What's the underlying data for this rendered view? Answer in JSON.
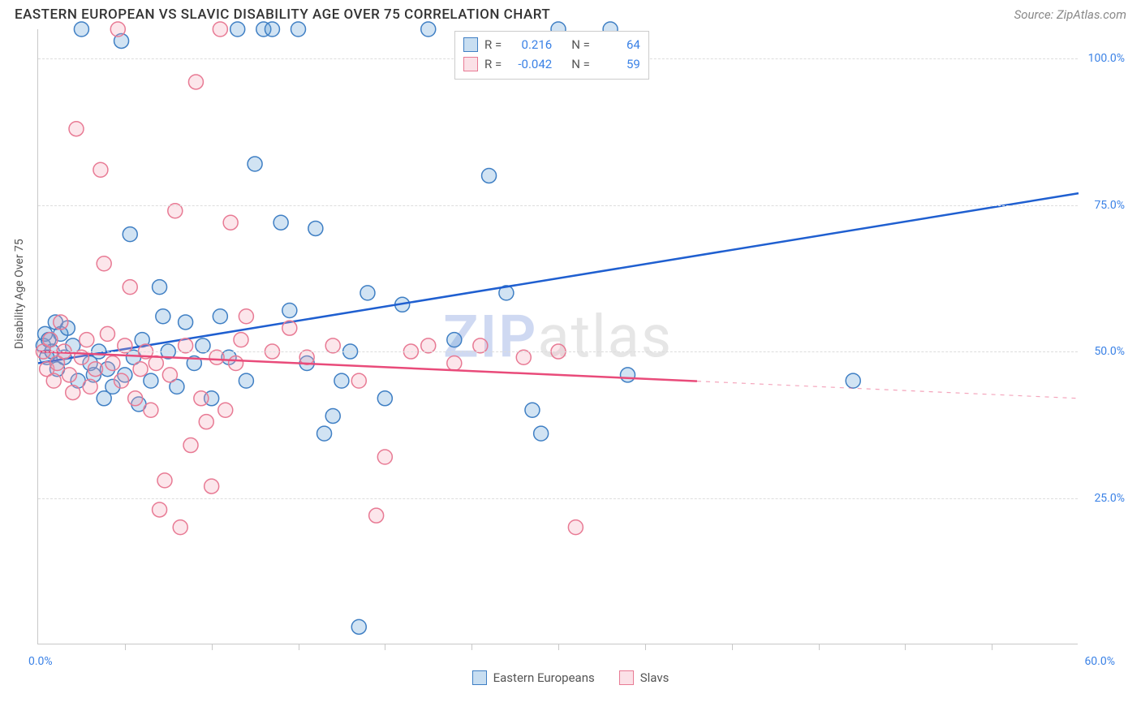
{
  "header": {
    "title": "EASTERN EUROPEAN VS SLAVIC DISABILITY AGE OVER 75 CORRELATION CHART",
    "source": "Source: ZipAtlas.com"
  },
  "watermark": {
    "prefix": "ZIP",
    "suffix": "atlas"
  },
  "chart": {
    "type": "scatter",
    "background_color": "#ffffff",
    "grid_color": "#dddddd",
    "axis_color": "#c8c8c8",
    "tick_label_color": "#3b82e6",
    "xlim": [
      0,
      60
    ],
    "ylim": [
      0,
      105
    ],
    "y_ticks": [
      25,
      50,
      75,
      100
    ],
    "y_tick_labels": [
      "25.0%",
      "50.0%",
      "75.0%",
      "100.0%"
    ],
    "x_ticks_major": [
      0,
      60
    ],
    "x_tick_labels": [
      "0.0%",
      "60.0%"
    ],
    "x_minor_tick_step": 5,
    "y_axis_title": "Disability Age Over 75",
    "marker_radius": 9,
    "marker_stroke_width": 1.5,
    "marker_fill_opacity": 0.28,
    "line_width": 2.5,
    "series": [
      {
        "key": "eastern",
        "label": "Eastern Europeans",
        "color": "#5b9bd5",
        "stroke": "#3f7fc4",
        "line_color": "#1f5fd0",
        "R": "0.216",
        "N": "64",
        "trend": {
          "x1": 0,
          "y1": 48,
          "x2": 60,
          "y2": 77,
          "solid_until": 60
        },
        "points": [
          [
            0.3,
            51
          ],
          [
            0.4,
            53
          ],
          [
            0.5,
            49
          ],
          [
            0.6,
            52
          ],
          [
            0.8,
            50
          ],
          [
            1.0,
            55
          ],
          [
            1.1,
            47
          ],
          [
            1.3,
            53
          ],
          [
            1.5,
            49
          ],
          [
            1.7,
            54
          ],
          [
            2.0,
            51
          ],
          [
            2.3,
            45
          ],
          [
            2.5,
            105
          ],
          [
            3.0,
            48
          ],
          [
            3.2,
            46
          ],
          [
            3.5,
            50
          ],
          [
            3.8,
            42
          ],
          [
            4.0,
            47
          ],
          [
            4.3,
            44
          ],
          [
            4.8,
            103
          ],
          [
            5.0,
            46
          ],
          [
            5.3,
            70
          ],
          [
            5.5,
            49
          ],
          [
            5.8,
            41
          ],
          [
            6.0,
            52
          ],
          [
            6.5,
            45
          ],
          [
            7.0,
            61
          ],
          [
            7.2,
            56
          ],
          [
            7.5,
            50
          ],
          [
            8.0,
            44
          ],
          [
            8.5,
            55
          ],
          [
            9.0,
            48
          ],
          [
            9.5,
            51
          ],
          [
            10.0,
            42
          ],
          [
            10.5,
            56
          ],
          [
            11.0,
            49
          ],
          [
            11.5,
            105
          ],
          [
            12.0,
            45
          ],
          [
            12.5,
            82
          ],
          [
            13.0,
            105
          ],
          [
            13.5,
            105
          ],
          [
            14.0,
            72
          ],
          [
            14.5,
            57
          ],
          [
            15.0,
            105
          ],
          [
            15.5,
            48
          ],
          [
            16.0,
            71
          ],
          [
            16.5,
            36
          ],
          [
            17.0,
            39
          ],
          [
            17.5,
            45
          ],
          [
            18.0,
            50
          ],
          [
            18.5,
            3
          ],
          [
            19.0,
            60
          ],
          [
            20.0,
            42
          ],
          [
            21.0,
            58
          ],
          [
            22.5,
            105
          ],
          [
            24.0,
            52
          ],
          [
            26.0,
            80
          ],
          [
            27.0,
            60
          ],
          [
            28.5,
            40
          ],
          [
            29.0,
            36
          ],
          [
            30.0,
            105
          ],
          [
            34.0,
            46
          ],
          [
            47.0,
            45
          ],
          [
            33.0,
            105
          ]
        ]
      },
      {
        "key": "slavs",
        "label": "Slavs",
        "color": "#f4a6b7",
        "stroke": "#e87a94",
        "line_color": "#e94b7a",
        "R": "-0.042",
        "N": "59",
        "trend": {
          "x1": 0,
          "y1": 50,
          "x2": 60,
          "y2": 42,
          "solid_until": 38
        },
        "points": [
          [
            0.3,
            50
          ],
          [
            0.5,
            47
          ],
          [
            0.7,
            52
          ],
          [
            0.9,
            45
          ],
          [
            1.1,
            48
          ],
          [
            1.3,
            55
          ],
          [
            1.5,
            50
          ],
          [
            1.8,
            46
          ],
          [
            2.0,
            43
          ],
          [
            2.2,
            88
          ],
          [
            2.5,
            49
          ],
          [
            2.8,
            52
          ],
          [
            3.0,
            44
          ],
          [
            3.3,
            47
          ],
          [
            3.6,
            81
          ],
          [
            3.8,
            65
          ],
          [
            4.0,
            53
          ],
          [
            4.3,
            48
          ],
          [
            4.6,
            105
          ],
          [
            4.8,
            45
          ],
          [
            5.0,
            51
          ],
          [
            5.3,
            61
          ],
          [
            5.6,
            42
          ],
          [
            5.9,
            47
          ],
          [
            6.2,
            50
          ],
          [
            6.5,
            40
          ],
          [
            6.8,
            48
          ],
          [
            7.0,
            23
          ],
          [
            7.3,
            28
          ],
          [
            7.6,
            46
          ],
          [
            7.9,
            74
          ],
          [
            8.2,
            20
          ],
          [
            8.5,
            51
          ],
          [
            8.8,
            34
          ],
          [
            9.1,
            96
          ],
          [
            9.4,
            42
          ],
          [
            9.7,
            38
          ],
          [
            10.0,
            27
          ],
          [
            10.3,
            49
          ],
          [
            10.5,
            105
          ],
          [
            10.8,
            40
          ],
          [
            11.1,
            72
          ],
          [
            11.4,
            48
          ],
          [
            11.7,
            52
          ],
          [
            12.0,
            56
          ],
          [
            13.5,
            50
          ],
          [
            14.5,
            54
          ],
          [
            15.5,
            49
          ],
          [
            17.0,
            51
          ],
          [
            18.5,
            45
          ],
          [
            19.5,
            22
          ],
          [
            20.0,
            32
          ],
          [
            21.5,
            50
          ],
          [
            22.5,
            51
          ],
          [
            24.0,
            48
          ],
          [
            25.5,
            51
          ],
          [
            28.0,
            49
          ],
          [
            30.0,
            50
          ],
          [
            31.0,
            20
          ]
        ]
      }
    ]
  },
  "legend_top": {
    "r_label": "R =",
    "n_label": "N ="
  }
}
